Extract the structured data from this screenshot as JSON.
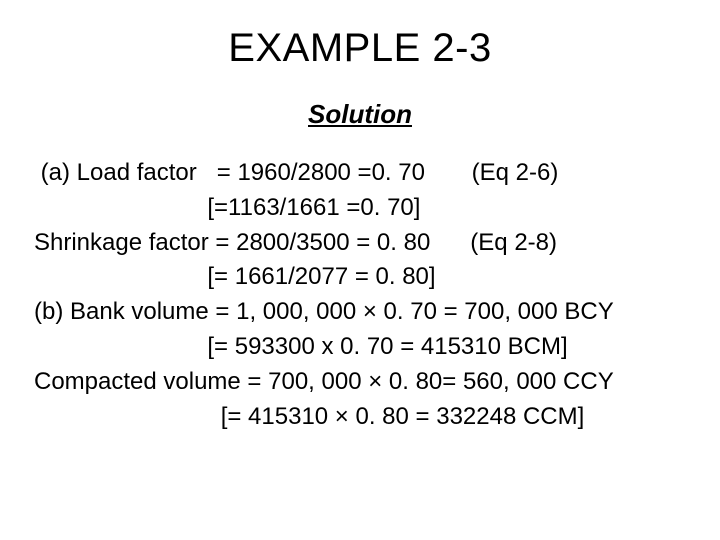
{
  "title": "EXAMPLE 2-3",
  "subtitle": "Solution",
  "lines": {
    "l1": " (a) Load factor   = 1960/2800 =0. 70       (Eq 2-6)",
    "l2": "                          [=1163/1661 =0. 70]",
    "l3": "Shrinkage factor = 2800/3500 = 0. 80      (Eq 2-8)",
    "l4": "                          [= 1661/2077 = 0. 80]",
    "l5": "(b) Bank volume = 1, 000, 000 × 0. 70 = 700, 000 BCY",
    "l6": "                          [= 593300 x 0. 70 = 415310 BCM]",
    "l7": "Compacted volume = 700, 000 × 0. 80= 560, 000 CCY",
    "l8": "                            [= 415310 × 0. 80 = 332248 CCM]"
  }
}
